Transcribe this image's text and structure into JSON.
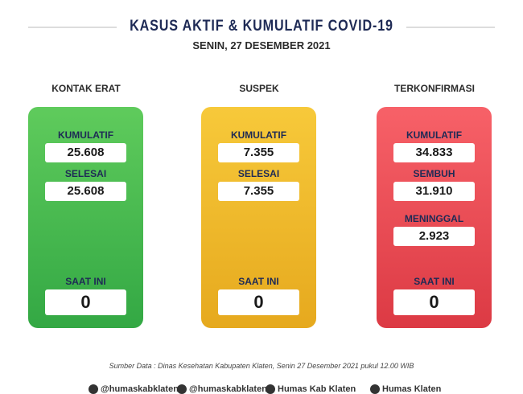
{
  "header": {
    "title": "KASUS AKTIF & KUMULATIF COVID-19",
    "subtitle": "SENIN, 27 DESEMBER 2021"
  },
  "columns": [
    {
      "label": "KONTAK ERAT",
      "color": "green",
      "rows": [
        {
          "label": "KUMULATIF",
          "value": "25.608"
        },
        {
          "label": "SELESAI",
          "value": "25.608"
        }
      ],
      "current": {
        "label": "SAAT INI",
        "value": "0"
      }
    },
    {
      "label": "SUSPEK",
      "color": "yellow",
      "rows": [
        {
          "label": "KUMULATIF",
          "value": "7.355"
        },
        {
          "label": "SELESAI",
          "value": "7.355"
        }
      ],
      "current": {
        "label": "SAAT INI",
        "value": "0"
      }
    },
    {
      "label": "TERKONFIRMASI",
      "color": "red",
      "rows": [
        {
          "label": "KUMULATIF",
          "value": "34.833"
        },
        {
          "label": "SEMBUH",
          "value": "31.910"
        },
        {
          "label": "MENINGGAL",
          "value": "2.923"
        }
      ],
      "current": {
        "label": "SAAT INI",
        "value": "0"
      }
    }
  ],
  "source": {
    "prefix": "Sumber Data :",
    "text": "Dinas Kesehatan Kabupaten Klaten, Senin 27 Desember 2021 pukul 12.00 WIB"
  },
  "footer": [
    "@humaskabklaten",
    "@humaskabklaten",
    "Humas Kab Klaten",
    "Humas Klaten"
  ]
}
